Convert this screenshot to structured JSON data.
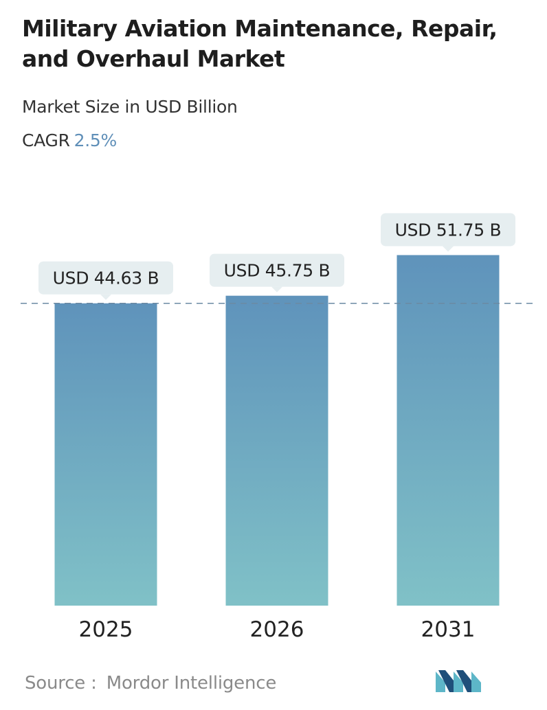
{
  "header": {
    "title": "Military Aviation Maintenance, Repair, and Overhaul Market",
    "subtitle": "Market Size in USD Billion",
    "cagr_label": "CAGR",
    "cagr_value": "2.5%"
  },
  "chart_data": {
    "type": "bar",
    "categories": [
      "2025",
      "2026",
      "2031"
    ],
    "values": [
      44.63,
      45.75,
      51.75
    ],
    "data_labels": [
      "USD 44.63 B",
      "USD 45.75 B",
      "USD 51.75 B"
    ],
    "reference_line": "dashed line at first-year value",
    "title": "Military Aviation Maintenance, Repair, and Overhaul Market",
    "subtitle": "Market Size in USD Billion",
    "bar_color_top": "#5f93bb",
    "bar_color_bottom": "#80c1c7",
    "label_box_color": "#e6eef0",
    "dashed_line_color": "#6b8aa3"
  },
  "footer": {
    "source_label": "Source :",
    "source_name": "Mordor Intelligence"
  },
  "logo": {
    "icon": "mordor-intelligence-logo-icon",
    "colors": [
      "#5db6c8",
      "#1f4f7a"
    ]
  }
}
